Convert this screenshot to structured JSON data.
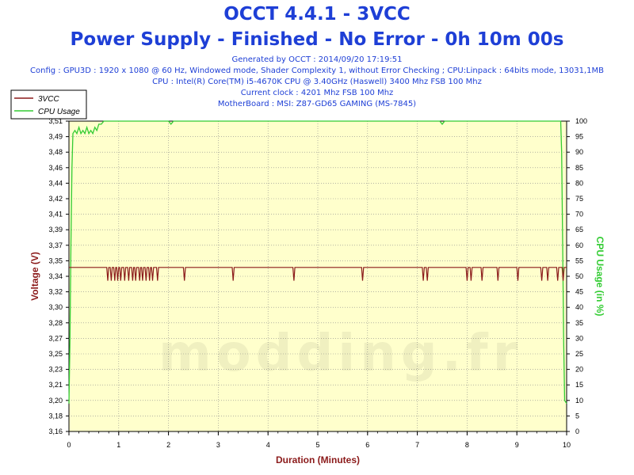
{
  "header": {
    "title": "OCCT 4.4.1 - 3VCC",
    "subtitle": "Power Supply - Finished - No Error - 0h 10m 00s",
    "info_lines": [
      "Generated by OCCT : 2014/09/20 17:19:51",
      "Config : GPU3D : 1920 x 1080 @ 60 Hz, Windowed mode, Shader Complexity 1, without Error Checking ; CPU:Linpack : 64bits mode, 13031,1MB",
      "CPU : Intel(R) Core(TM) i5-4670K CPU @ 3.40GHz (Haswell) 3400 Mhz FSB 100 Mhz",
      "Current clock : 4201 Mhz FSB 100 Mhz",
      "MotherBoard : MSI: Z87-GD65 GAMING (MS-7845)"
    ]
  },
  "watermark": "modding.fr",
  "colors": {
    "title": "#1e3fd6",
    "plot_background": "#ffffcc",
    "voltage_series": "#8b1a1a",
    "cpu_series": "#33cc33",
    "axis_label_left": "#8b1a1a",
    "axis_label_right": "#33cc33"
  },
  "chart_data": {
    "type": "line",
    "xlabel": "Duration (Minutes)",
    "ylabel_left": "Voltage (V)",
    "ylabel_right": "CPU Usage (in %)",
    "xlim": [
      0,
      10
    ],
    "ylim_left": [
      3.16,
      3.51
    ],
    "ylim_right": [
      0,
      100
    ],
    "x_ticks": [
      "0",
      "1",
      "2",
      "3",
      "4",
      "5",
      "6",
      "7",
      "8",
      "9",
      "10"
    ],
    "y_left_ticks": [
      "3,16",
      "3,18",
      "3,20",
      "3,21",
      "3,23",
      "3,25",
      "3,27",
      "3,28",
      "3,30",
      "3,32",
      "3,34",
      "3,35",
      "3,37",
      "3,39",
      "3,41",
      "3,42",
      "3,44",
      "3,46",
      "3,48",
      "3,49",
      "3,51"
    ],
    "y_right_ticks": [
      "0",
      "5",
      "10",
      "15",
      "20",
      "25",
      "30",
      "35",
      "40",
      "45",
      "50",
      "55",
      "60",
      "65",
      "70",
      "75",
      "80",
      "85",
      "90",
      "95",
      "100"
    ],
    "grid": true,
    "legend_position": "top-left",
    "series": [
      {
        "name": "3VCC",
        "axis": "left",
        "baseline": 3.345,
        "dip_value": 3.33,
        "dip_minutes": [
          0.78,
          0.85,
          0.92,
          0.98,
          1.04,
          1.12,
          1.2,
          1.28,
          1.34,
          1.42,
          1.48,
          1.55,
          1.62,
          1.68,
          1.78,
          2.32,
          3.3,
          4.52,
          5.9,
          7.12,
          7.2,
          8.0,
          8.08,
          8.3,
          8.62,
          9.02,
          9.5,
          9.62,
          9.82,
          9.93
        ]
      },
      {
        "name": "CPU Usage",
        "axis": "right",
        "points": [
          [
            0,
            9
          ],
          [
            0.02,
            30
          ],
          [
            0.04,
            60
          ],
          [
            0.06,
            85
          ],
          [
            0.08,
            96
          ],
          [
            0.12,
            97
          ],
          [
            0.16,
            96
          ],
          [
            0.2,
            98
          ],
          [
            0.24,
            96
          ],
          [
            0.28,
            97
          ],
          [
            0.32,
            96
          ],
          [
            0.36,
            98
          ],
          [
            0.4,
            96
          ],
          [
            0.44,
            97
          ],
          [
            0.48,
            96
          ],
          [
            0.52,
            98
          ],
          [
            0.56,
            97
          ],
          [
            0.6,
            99
          ],
          [
            0.65,
            99
          ],
          [
            0.7,
            100
          ],
          [
            2.0,
            100
          ],
          [
            2.05,
            99
          ],
          [
            2.1,
            100
          ],
          [
            7.45,
            100
          ],
          [
            7.5,
            99
          ],
          [
            7.55,
            100
          ],
          [
            9.88,
            100
          ],
          [
            9.9,
            90
          ],
          [
            9.92,
            60
          ],
          [
            9.94,
            30
          ],
          [
            9.96,
            10
          ],
          [
            10,
            9
          ]
        ]
      }
    ]
  }
}
